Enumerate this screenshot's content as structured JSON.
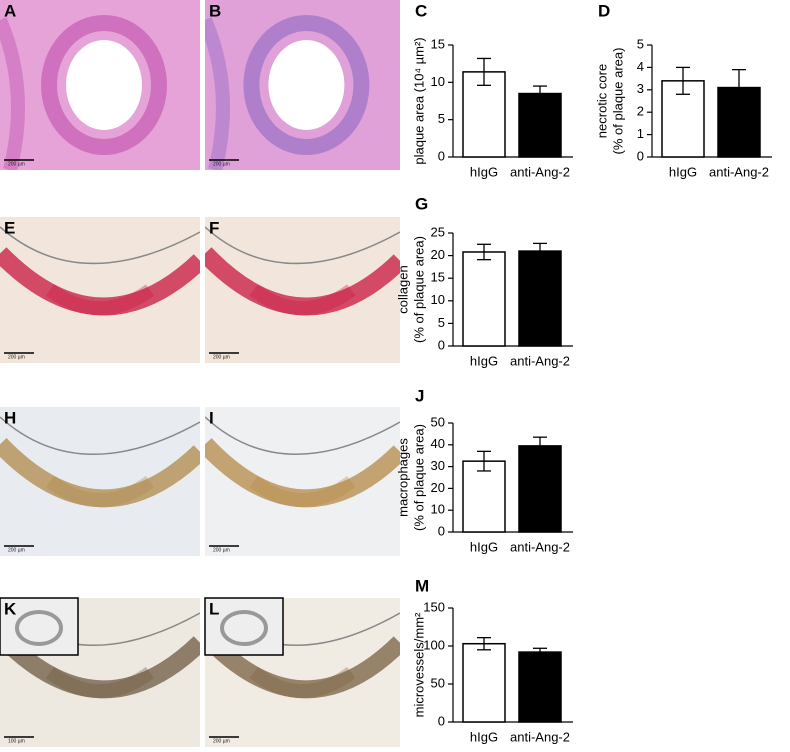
{
  "images": [
    {
      "panel": "A",
      "scale_bar": "200 µm"
    },
    {
      "panel": "B",
      "scale_bar": "200 µm"
    },
    {
      "panel": "E",
      "scale_bar": "200 µm"
    },
    {
      "panel": "F",
      "scale_bar": "200 µm"
    },
    {
      "panel": "H",
      "scale_bar": "200 µm"
    },
    {
      "panel": "I",
      "scale_bar": "200 µm"
    },
    {
      "panel": "K",
      "scale_bar": "100 µm"
    },
    {
      "panel": "L",
      "scale_bar": "200 µm"
    }
  ],
  "chart_data": [
    {
      "type": "bar",
      "panel": "C",
      "ylabel": [
        "plaque area (10⁴ µm²)"
      ],
      "categories": [
        "hIgG",
        "anti-Ang-2"
      ],
      "values": [
        11.4,
        8.5
      ],
      "errors": [
        1.8,
        1.0
      ],
      "colors": [
        "#ffffff",
        "#000000"
      ],
      "ylim": [
        0,
        15
      ],
      "yticks": [
        0,
        5,
        10,
        15
      ]
    },
    {
      "type": "bar",
      "panel": "D",
      "ylabel": [
        "necrotic core",
        "(% of plaque area)"
      ],
      "categories": [
        "hIgG",
        "anti-Ang-2"
      ],
      "values": [
        3.4,
        3.1
      ],
      "errors": [
        0.6,
        0.8
      ],
      "colors": [
        "#ffffff",
        "#000000"
      ],
      "ylim": [
        0,
        5
      ],
      "yticks": [
        0,
        1,
        2,
        3,
        4,
        5
      ]
    },
    {
      "type": "bar",
      "panel": "G",
      "ylabel": [
        "collagen",
        "(% of plaque area)"
      ],
      "categories": [
        "hIgG",
        "anti-Ang-2"
      ],
      "values": [
        20.8,
        21.0
      ],
      "errors": [
        1.7,
        1.7
      ],
      "colors": [
        "#ffffff",
        "#000000"
      ],
      "ylim": [
        0,
        25
      ],
      "yticks": [
        0,
        5,
        10,
        15,
        20,
        25
      ]
    },
    {
      "type": "bar",
      "panel": "J",
      "ylabel": [
        "macrophages",
        "(% of plaque area)"
      ],
      "categories": [
        "hIgG",
        "anti-Ang-2"
      ],
      "values": [
        32.5,
        39.5
      ],
      "errors": [
        4.5,
        4.0
      ],
      "colors": [
        "#ffffff",
        "#000000"
      ],
      "ylim": [
        0,
        50
      ],
      "yticks": [
        0,
        10,
        20,
        30,
        40,
        50
      ]
    },
    {
      "type": "bar",
      "panel": "M",
      "ylabel": [
        "microvessels/mm²"
      ],
      "categories": [
        "hIgG",
        "anti-Ang-2"
      ],
      "values": [
        103,
        92
      ],
      "errors": [
        8,
        5
      ],
      "colors": [
        "#ffffff",
        "#000000"
      ],
      "ylim": [
        0,
        150
      ],
      "yticks": [
        0,
        50,
        100,
        150
      ]
    }
  ]
}
